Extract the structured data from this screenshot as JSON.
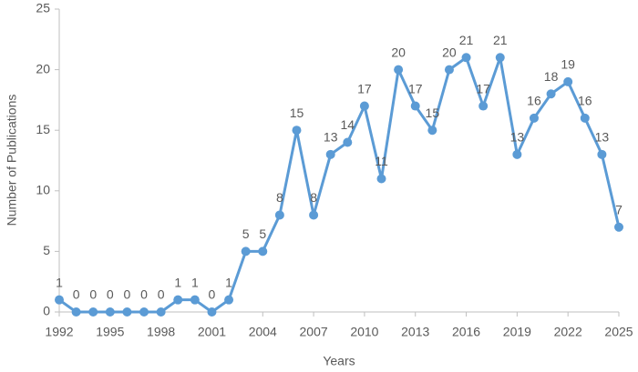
{
  "chart_data": {
    "type": "line",
    "x_label": "Years",
    "y_label": "Number of Publications",
    "x": [
      1992,
      1993,
      1994,
      1995,
      1996,
      1997,
      1998,
      1999,
      2000,
      2001,
      2002,
      2003,
      2004,
      2005,
      2006,
      2007,
      2008,
      2009,
      2010,
      2011,
      2012,
      2013,
      2014,
      2015,
      2016,
      2017,
      2018,
      2019,
      2020,
      2021,
      2022,
      2023,
      2024,
      2025
    ],
    "values": [
      1,
      0,
      0,
      0,
      0,
      0,
      0,
      1,
      1,
      0,
      1,
      5,
      5,
      8,
      15,
      8,
      13,
      14,
      17,
      11,
      20,
      17,
      15,
      20,
      21,
      17,
      21,
      13,
      16,
      18,
      19,
      16,
      13,
      7
    ],
    "color": "#5b9bd5",
    "xlim": [
      1992,
      2025
    ],
    "xticks": [
      1992,
      1995,
      1998,
      2001,
      2004,
      2007,
      2010,
      2013,
      2016,
      2019,
      2022,
      2025
    ],
    "ylim": [
      0,
      25
    ],
    "yticks": [
      0,
      5,
      10,
      15,
      20,
      25
    ],
    "grid": false
  }
}
